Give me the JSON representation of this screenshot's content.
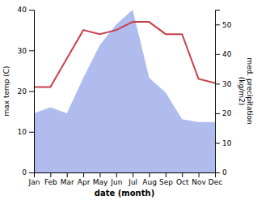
{
  "chart_data": {
    "type": "line",
    "xlabel": "date (month)",
    "ylabel": "max temp (C)",
    "y2label": "med. precipitation\n(kg/m2)",
    "categories": [
      "Jan",
      "Feb",
      "Mar",
      "Apr",
      "May",
      "Jun",
      "Jul",
      "Aug",
      "Sep",
      "Oct",
      "Nov",
      "Dec"
    ],
    "series": [
      {
        "type": "area",
        "axis": "y2",
        "color": "#b0bcee",
        "values": [
          20,
          22,
          20,
          32,
          43,
          50,
          55,
          32,
          27,
          18,
          17,
          17
        ]
      },
      {
        "type": "line",
        "color": "#c8404a",
        "values": [
          21,
          21,
          28,
          35,
          34,
          35,
          37,
          37,
          34,
          34,
          23,
          22
        ]
      }
    ],
    "ylim": [
      0,
      40
    ],
    "yticks": [
      0,
      10,
      20,
      30,
      40
    ],
    "y2lim": [
      0,
      55
    ],
    "y2ticks": [
      0,
      10,
      20,
      30,
      40,
      50
    ],
    "grid": false
  }
}
